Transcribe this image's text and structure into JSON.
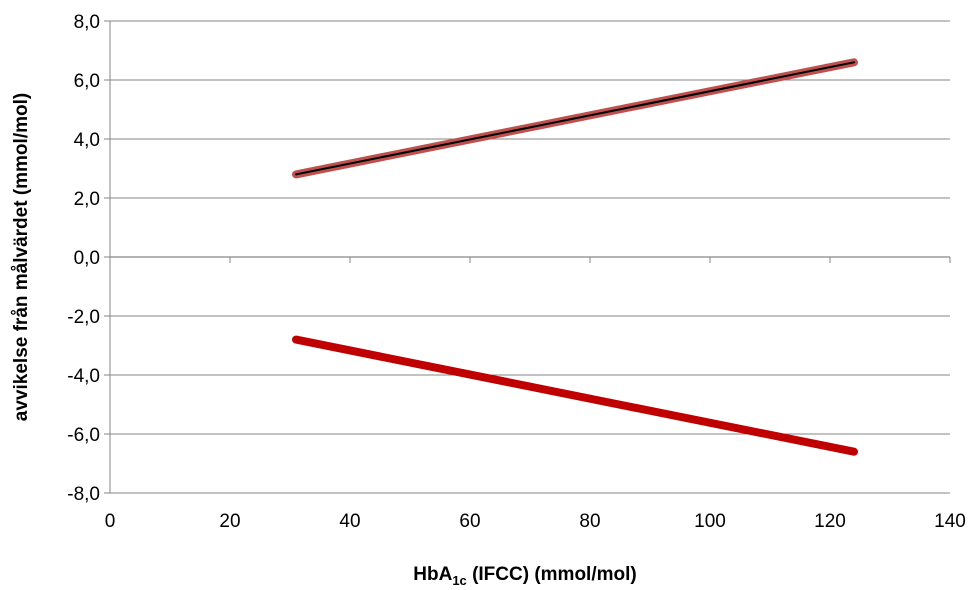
{
  "chart_data": {
    "type": "line",
    "title": "",
    "xlabel": {
      "main": "HbA",
      "sub": "1c",
      "rest": " (IFCC) (mmol/mol)"
    },
    "ylabel": "avvikelse från målvärdet (mmol/mol)",
    "xlim": [
      0,
      140
    ],
    "ylim": [
      -8,
      8
    ],
    "x_ticks": [
      0,
      20,
      40,
      60,
      80,
      100,
      120,
      140
    ],
    "x_tick_labels": [
      "0",
      "20",
      "40",
      "60",
      "80",
      "100",
      "120",
      "140"
    ],
    "y_ticks": [
      -8,
      -6,
      -4,
      -2,
      0,
      2,
      4,
      6,
      8
    ],
    "y_tick_labels": [
      "-8,0",
      "-6,0",
      "-4,0",
      "-2,0",
      "0,0",
      "2,0",
      "4,0",
      "6,0",
      "8,0"
    ],
    "grid": "horizontal",
    "legend": "none",
    "series": [
      {
        "x": [
          31,
          124
        ],
        "values": [
          2.8,
          6.6
        ],
        "color": "#c0504d",
        "inner_color": "#000000"
      },
      {
        "x": [
          31,
          124
        ],
        "values": [
          -2.8,
          -6.6
        ],
        "color": "#c00000"
      }
    ]
  }
}
